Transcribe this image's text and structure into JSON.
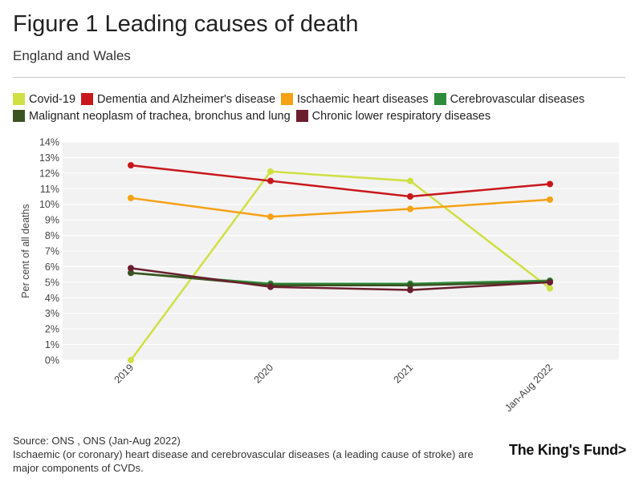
{
  "header": {
    "title": "Figure 1 Leading causes of death",
    "subtitle": "England and Wales"
  },
  "legend": [
    {
      "label": "Covid-19",
      "color": "#cfe043"
    },
    {
      "label": "Dementia and Alzheimer's disease",
      "color": "#c8171b"
    },
    {
      "label": "Ischaemic heart diseases",
      "color": "#f6a114"
    },
    {
      "label": "Cerebrovascular diseases",
      "color": "#2e8b3a"
    },
    {
      "label": "Malignant neoplasm of trachea, bronchus and lung",
      "color": "#3b5423"
    },
    {
      "label": "Chronic lower respiratory diseases",
      "color": "#6b1e2e"
    }
  ],
  "chart_data": {
    "type": "line",
    "title": "Figure 1 Leading causes of death",
    "subtitle": "England and Wales",
    "xlabel": "",
    "ylabel": "Per cent of all deaths",
    "x": [
      "2019",
      "2020",
      "2021",
      "Jan-Aug 2022"
    ],
    "ylim": [
      0,
      14
    ],
    "yticks": [
      "0%",
      "1%",
      "2%",
      "3%",
      "4%",
      "5%",
      "6%",
      "7%",
      "8%",
      "9%",
      "10%",
      "11%",
      "12%",
      "13%",
      "14%"
    ],
    "series": [
      {
        "name": "Covid-19",
        "color": "#cfe043",
        "values": [
          0,
          12.1,
          11.5,
          4.6
        ]
      },
      {
        "name": "Dementia and Alzheimer's disease",
        "color": "#c8171b",
        "values": [
          12.5,
          11.5,
          10.5,
          11.3
        ]
      },
      {
        "name": "Ischaemic heart diseases",
        "color": "#f6a114",
        "values": [
          10.4,
          9.2,
          9.7,
          10.3
        ]
      },
      {
        "name": "Cerebrovascular diseases",
        "color": "#2e8b3a",
        "values": [
          5.6,
          4.9,
          4.9,
          5.1
        ]
      },
      {
        "name": "Malignant neoplasm of trachea, bronchus and lung",
        "color": "#3b5423",
        "values": [
          5.6,
          4.8,
          4.8,
          5.0
        ]
      },
      {
        "name": "Chronic lower respiratory diseases",
        "color": "#6b1e2e",
        "values": [
          5.9,
          4.7,
          4.5,
          5.0
        ]
      }
    ]
  },
  "footer": {
    "source": "Source: ONS , ONS (Jan-Aug 2022)",
    "note": "Ischaemic (or coronary) heart disease and cerebrovascular diseases (a leading cause of stroke) are major components of CVDs.",
    "logo": "The King's Fund>"
  }
}
